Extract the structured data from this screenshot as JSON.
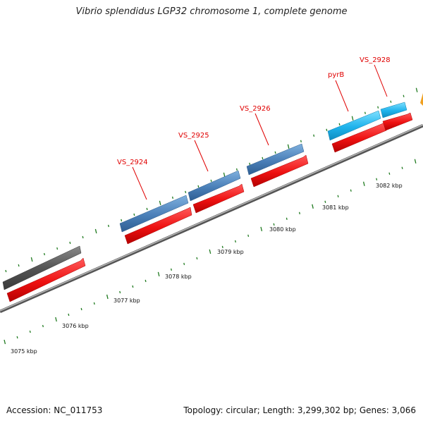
{
  "title": "Vibrio splendidus LGP32 chromosome 1, complete genome",
  "accession": "Accession: NC_011753",
  "summary": "Topology: circular; Length: 3,299,302 bp; Genes: 3,066",
  "scale": {
    "unit": "kbp",
    "labels": [
      "3075 kbp",
      "3076 kbp",
      "3077 kbp",
      "3078 kbp",
      "3079 kbp",
      "3080 kbp",
      "3081 kbp",
      "3082 kbp"
    ]
  },
  "genes": [
    {
      "label": "",
      "kind": "grey"
    },
    {
      "label": "VS_2924",
      "kind": "steelblue"
    },
    {
      "label": "VS_2925",
      "kind": "steelblue"
    },
    {
      "label": "VS_2926",
      "kind": "steelblue"
    },
    {
      "label": "pyrB",
      "kind": "cyan"
    },
    {
      "label": "VS_2928",
      "kind": "cyan"
    }
  ],
  "colors": {
    "cds": "#ee1111",
    "grey_gene": "#5a5a5a",
    "steelblue_gene": "#4a7fb8",
    "cyan_gene": "#1fb3ec",
    "orange_gene": "#f0a020",
    "backbone": "#8a8a8a",
    "tick": "#1f7a1f",
    "label": "#e00000"
  }
}
